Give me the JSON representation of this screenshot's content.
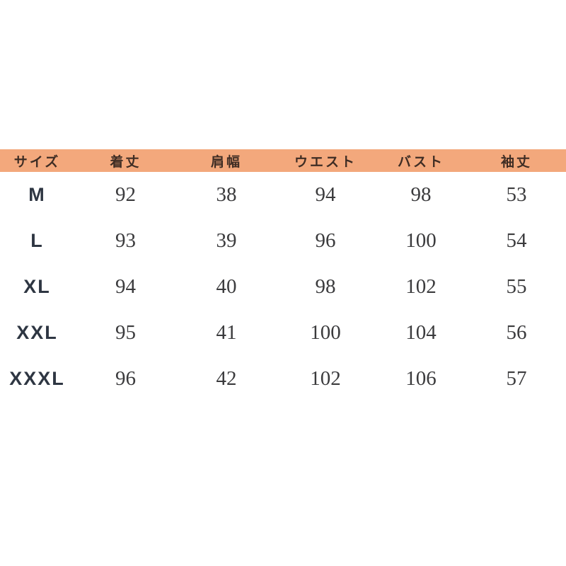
{
  "page": {
    "background_color": "#ffffff"
  },
  "table": {
    "header_background_color": "#f3a87c",
    "header_text_color": "#3f2d24",
    "size_label_color": "#2e3642",
    "value_text_color": "#3b3b3d",
    "columns": [
      "サイズ",
      "着丈",
      "肩幅",
      "ウエスト",
      "バスト",
      "袖丈"
    ],
    "rows": [
      {
        "size": "M",
        "values": [
          "92",
          "38",
          "94",
          "98",
          "53"
        ]
      },
      {
        "size": "L",
        "values": [
          "93",
          "39",
          "96",
          "100",
          "54"
        ]
      },
      {
        "size": "XL",
        "values": [
          "94",
          "40",
          "98",
          "102",
          "55"
        ]
      },
      {
        "size": "XXL",
        "values": [
          "95",
          "41",
          "100",
          "104",
          "56"
        ]
      },
      {
        "size": "XXXL",
        "values": [
          "96",
          "42",
          "102",
          "106",
          "57"
        ]
      }
    ]
  },
  "chart_data": {
    "type": "table",
    "title": "",
    "columns": [
      "サイズ",
      "着丈",
      "肩幅",
      "ウエスト",
      "バスト",
      "袖丈"
    ],
    "rows": [
      [
        "M",
        92,
        38,
        94,
        98,
        53
      ],
      [
        "L",
        93,
        39,
        96,
        100,
        54
      ],
      [
        "XL",
        94,
        40,
        98,
        102,
        55
      ],
      [
        "XXL",
        95,
        41,
        100,
        104,
        56
      ],
      [
        "XXXL",
        96,
        42,
        102,
        106,
        57
      ]
    ]
  }
}
